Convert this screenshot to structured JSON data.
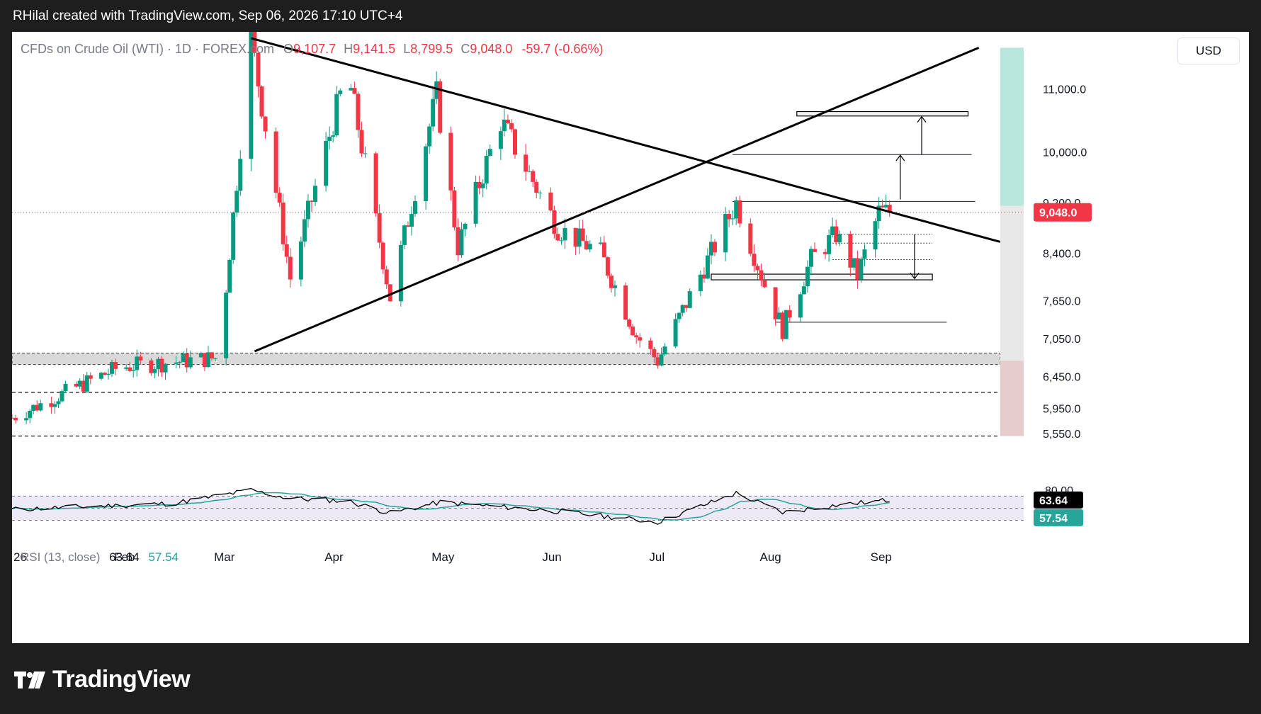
{
  "caption": "RHilal created with TradingView.com, Sep 06, 2026 17:10 UTC+4",
  "legend": {
    "symbol": "CFDs on Crude Oil (WTI) · 1D · FOREX.com",
    "open_label": "O",
    "open": "9,107.7",
    "high_label": "H",
    "high": "9,141.5",
    "low_label": "L",
    "low": "8,799.5",
    "close_label": "C",
    "close": "9,048.0",
    "change": "-59.7 (-0.66%)"
  },
  "currency": "USD",
  "price_axis_labels": [
    "11,000.0",
    "10,000.0",
    "9,200.0",
    "8,400.0",
    "7,650.0",
    "7,050.0",
    "6,450.0",
    "5,950.0",
    "5,550.0"
  ],
  "last_price_tag": "9,048.0",
  "time_axis_labels": [
    "26",
    "Feb",
    "Mar",
    "Apr",
    "May",
    "Jun",
    "Jul",
    "Aug",
    "Sep"
  ],
  "rsi": {
    "name": "RSI (13, close)",
    "value": "63.64",
    "ma_value": "57.54",
    "axis_label": "80.00",
    "tag_value": "63.64",
    "tag_ma": "57.54"
  },
  "colors": {
    "up": "#089981",
    "down": "#f23645",
    "rsi_line": "#000000",
    "rsi_ma": "#26a69a",
    "rsi_band": "#ede9f7",
    "support_zone": "#d9d9d9",
    "target_zone": "#b9e6da",
    "stop_zone": "#e6cccc"
  },
  "footer_brand": "TradingView",
  "chart_data": {
    "type": "candlestick",
    "title": "CFDs on Crude Oil (WTI) · 1D · FOREX.com",
    "x_range": [
      "2026-01-01",
      "2026-10-10"
    ],
    "y_range": [
      5450,
      11900
    ],
    "key_points": [
      {
        "date": "2026-01-01",
        "price": 5800
      },
      {
        "date": "2026-01-31",
        "price": 6600
      },
      {
        "date": "2026-02-28",
        "price": 6750
      },
      {
        "date": "2026-03-09",
        "price": 11800
      },
      {
        "date": "2026-03-20",
        "price": 8000
      },
      {
        "date": "2026-04-05",
        "price": 11300
      },
      {
        "date": "2026-04-17",
        "price": 7700
      },
      {
        "date": "2026-04-30",
        "price": 10900
      },
      {
        "date": "2026-05-06",
        "price": 8500
      },
      {
        "date": "2026-05-18",
        "price": 10500
      },
      {
        "date": "2026-06-03",
        "price": 8800
      },
      {
        "date": "2026-06-15",
        "price": 8400
      },
      {
        "date": "2026-06-25",
        "price": 7100
      },
      {
        "date": "2026-07-01",
        "price": 6700
      },
      {
        "date": "2026-07-23",
        "price": 9200
      },
      {
        "date": "2026-07-31",
        "price": 7900
      },
      {
        "date": "2026-08-05",
        "price": 7200
      },
      {
        "date": "2026-08-13",
        "price": 8300
      },
      {
        "date": "2026-08-20",
        "price": 8700
      },
      {
        "date": "2026-08-26",
        "price": 8050
      },
      {
        "date": "2026-09-01",
        "price": 9050
      },
      {
        "date": "2026-09-04",
        "price": 9048
      }
    ],
    "last_close": 9048.0,
    "trendlines": [
      {
        "from": {
          "date": "2026-03-09",
          "price": 11800
        },
        "to": {
          "date": "2026-10-05",
          "price": 8580
        }
      },
      {
        "from": {
          "date": "2026-03-10",
          "price": 6850
        },
        "to": {
          "date": "2026-09-29",
          "price": 11650
        }
      }
    ],
    "horizontal_levels": [
      {
        "price": 9220,
        "from": "2026-07-22",
        "to": "2026-09-28"
      },
      {
        "price": 9960,
        "from": "2026-07-22",
        "to": "2026-09-27"
      },
      {
        "price": 7310,
        "from": "2026-08-03",
        "to": "2026-09-20"
      },
      {
        "price": 6200,
        "from": "2026-01-01",
        "to": "2026-10-05",
        "style": "dashed"
      },
      {
        "price": 5510,
        "from": "2026-01-01",
        "to": "2026-10-05",
        "style": "dashed"
      }
    ],
    "zones": [
      {
        "from_price": 6640,
        "to_price": 6820,
        "from": "2026-01-01",
        "to": "2026-10-05"
      },
      {
        "from_price": 10570,
        "to_price": 10640,
        "from": "2026-08-09",
        "to": "2026-09-26"
      },
      {
        "from_price": 7980,
        "to_price": 8070,
        "from": "2026-07-16",
        "to": "2026-09-16"
      }
    ],
    "position": {
      "entry": 9150,
      "target": 11650,
      "stop": 5510,
      "date": "2026-10-05"
    },
    "rsi": {
      "y_range": [
        0,
        100
      ],
      "band": [
        30,
        70
      ],
      "levels_shown": [
        80
      ],
      "last": 63.64,
      "ma_last": 57.54,
      "key_points": [
        {
          "date": "2026-01-01",
          "value": 48
        },
        {
          "date": "2026-02-15",
          "value": 58
        },
        {
          "date": "2026-03-09",
          "value": 80
        },
        {
          "date": "2026-03-20",
          "value": 66
        },
        {
          "date": "2026-04-05",
          "value": 62
        },
        {
          "date": "2026-04-17",
          "value": 42
        },
        {
          "date": "2026-05-01",
          "value": 60
        },
        {
          "date": "2026-06-03",
          "value": 45
        },
        {
          "date": "2026-07-01",
          "value": 27
        },
        {
          "date": "2026-07-23",
          "value": 75
        },
        {
          "date": "2026-08-05",
          "value": 43
        },
        {
          "date": "2026-08-20",
          "value": 55
        },
        {
          "date": "2026-09-04",
          "value": 63.64
        }
      ]
    }
  }
}
